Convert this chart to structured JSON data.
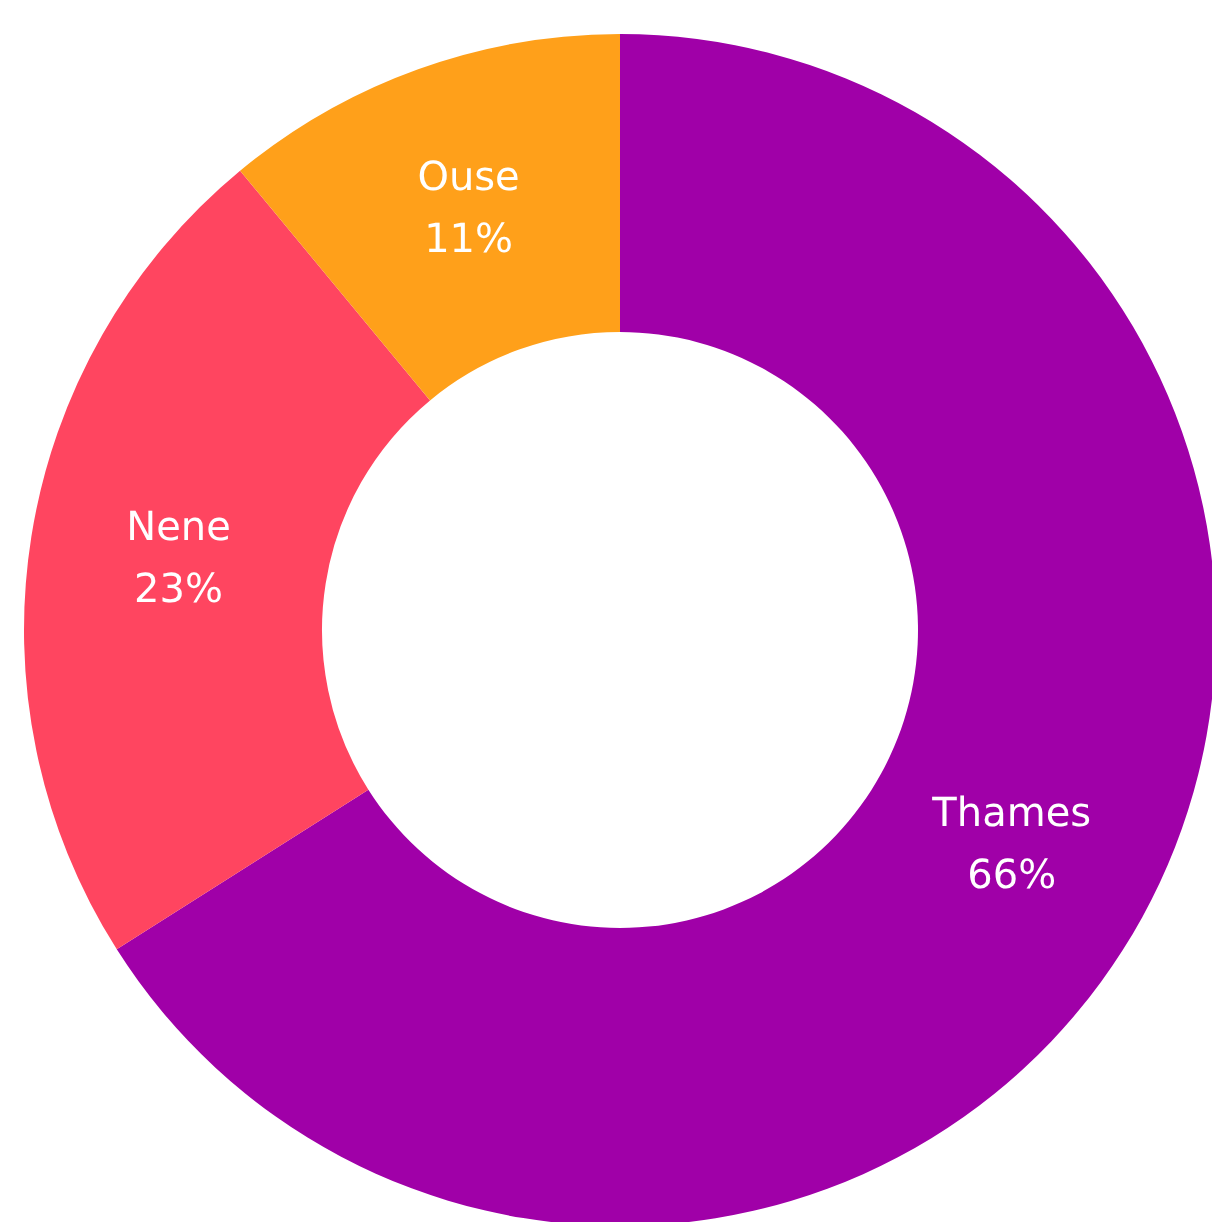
{
  "chart_data": {
    "type": "donut",
    "categories": [
      "Thames",
      "Nene",
      "Ouse"
    ],
    "values": [
      66,
      23,
      11
    ],
    "colors": [
      "#a000a8",
      "#ff4560",
      "#ffa01a"
    ],
    "value_labels": [
      "66%",
      "23%",
      "11%"
    ],
    "legend": false
  }
}
